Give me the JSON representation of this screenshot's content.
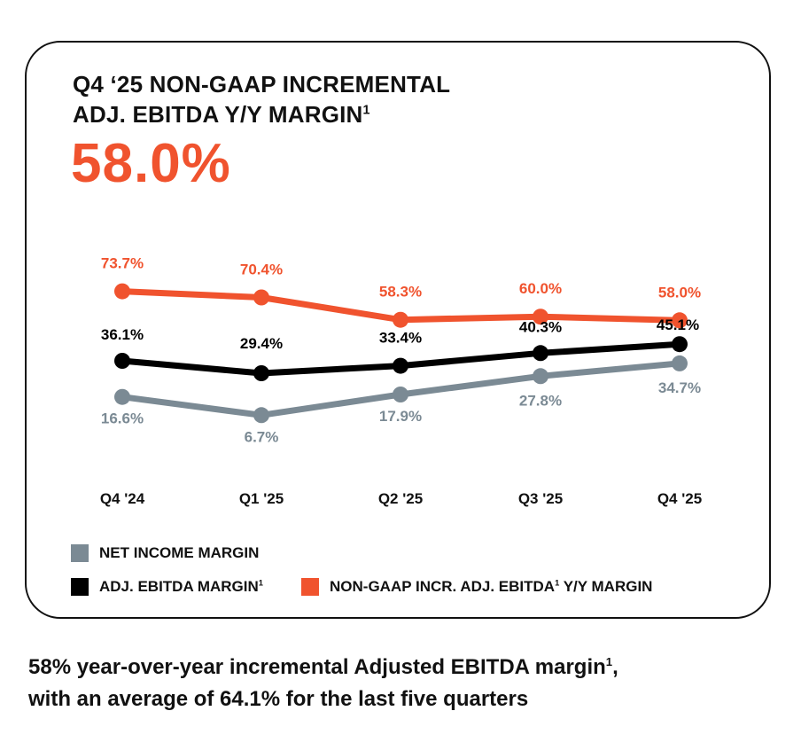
{
  "header": {
    "title_line1": "Q4 ‘25 NON-GAAP INCREMENTAL",
    "title_line2": "ADJ. EBITDA Y/Y MARGIN",
    "title_sup": "1",
    "headline_value": "58.0%"
  },
  "chart_data": {
    "type": "line",
    "title": "Q4 ‘25 NON-GAAP INCREMENTAL ADJ. EBITDA Y/Y MARGIN",
    "categories": [
      "Q4 '24",
      "Q1 '25",
      "Q2 '25",
      "Q3 '25",
      "Q4 '25"
    ],
    "ylim": [
      0,
      80
    ],
    "grid": false,
    "series": [
      {
        "name": "NON-GAAP INCR. ADJ. EBITDA Y/Y MARGIN",
        "color": "#F0532E",
        "values": [
          73.7,
          70.4,
          58.3,
          60.0,
          58.0
        ],
        "labels": [
          "73.7%",
          "70.4%",
          "58.3%",
          "60.0%",
          "58.0%"
        ]
      },
      {
        "name": "ADJ. EBITDA MARGIN",
        "color": "#000000",
        "values": [
          36.1,
          29.4,
          33.4,
          40.3,
          45.1
        ],
        "labels": [
          "36.1%",
          "29.4%",
          "33.4%",
          "40.3%",
          "45.1%"
        ]
      },
      {
        "name": "NET INCOME MARGIN",
        "color": "#7B8A94",
        "values": [
          16.6,
          6.7,
          17.9,
          27.8,
          34.7
        ],
        "labels": [
          "16.6%",
          "6.7%",
          "17.9%",
          "27.8%",
          "34.7%"
        ]
      }
    ]
  },
  "legend": {
    "net_income": {
      "label": "NET INCOME MARGIN",
      "color": "#7B8A94"
    },
    "adj_ebitda": {
      "label": "ADJ. EBITDA MARGIN",
      "sup": "1",
      "color": "#000000"
    },
    "non_gaap": {
      "label_a": "NON-GAAP INCR. ADJ. EBITDA",
      "sup": "1",
      "label_b": " Y/Y MARGIN",
      "color": "#F0532E"
    }
  },
  "footnote": {
    "line1_a": "58% year-over-year incremental Adjusted EBITDA margin",
    "line1_sup": "1",
    "line1_b": ",",
    "line2": "with an average of 64.1% for the last five quarters"
  }
}
